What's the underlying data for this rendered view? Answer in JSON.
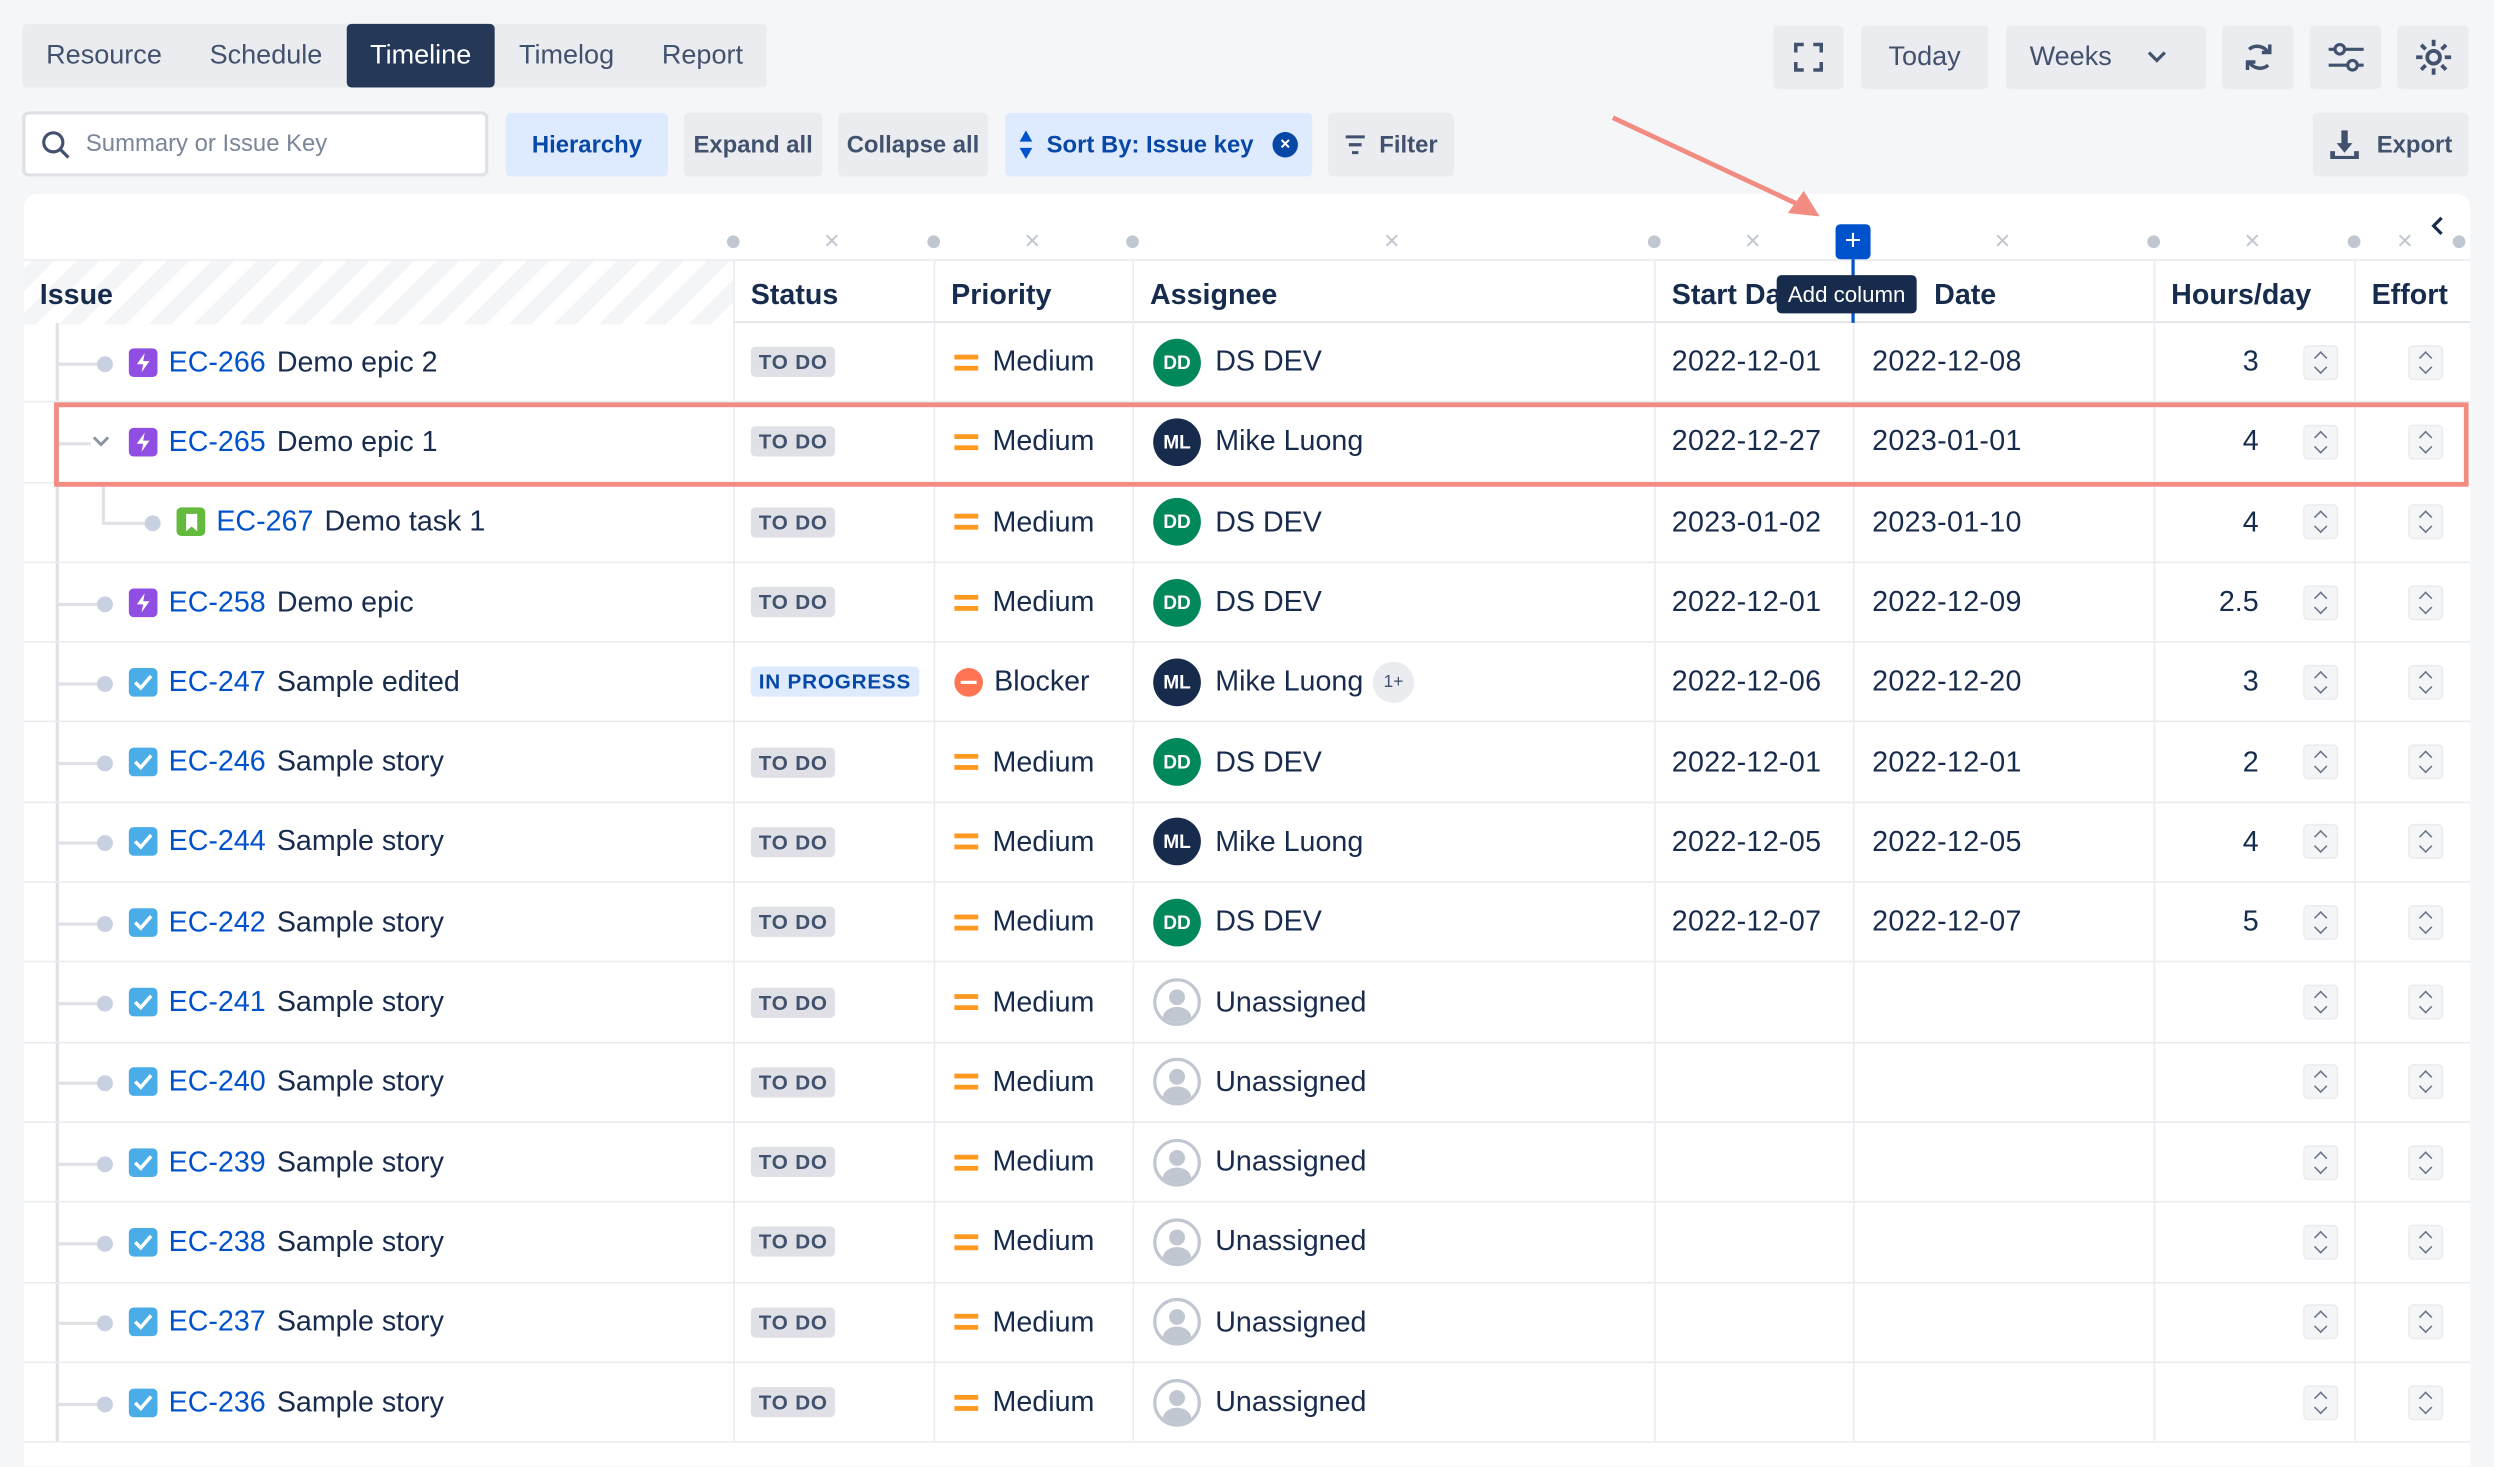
{
  "tabs": [
    "Resource",
    "Schedule",
    "Timeline",
    "Timelog",
    "Report"
  ],
  "active_tab": "Timeline",
  "toolbar": {
    "today": "Today",
    "weeks": "Weeks"
  },
  "search": {
    "placeholder": "Summary or Issue Key"
  },
  "buttons": {
    "hierarchy": "Hierarchy",
    "expand_all": "Expand all",
    "collapse_all": "Collapse all",
    "sort_by": "Sort By: Issue key",
    "filter": "Filter",
    "export": "Export"
  },
  "tooltip": "Add column",
  "columns": [
    "Issue",
    "Status",
    "Priority",
    "Assignee",
    "Start Da",
    "Date",
    "Hours/day",
    "Effort"
  ],
  "rows": [
    {
      "key": "EC-266",
      "summary": "Demo epic 2",
      "type": "epic",
      "level": 0,
      "status": "TO DO",
      "priority": "Medium",
      "assignee": "DS DEV",
      "initials": "DD",
      "start": "2022-12-01",
      "due": "2022-12-08",
      "hours": "3"
    },
    {
      "key": "EC-265",
      "summary": "Demo epic 1",
      "type": "epic",
      "level": 0,
      "expanded": true,
      "status": "TO DO",
      "priority": "Medium",
      "assignee": "Mike Luong",
      "initials": "ML",
      "start": "2022-12-27",
      "due": "2023-01-01",
      "hours": "4"
    },
    {
      "key": "EC-267",
      "summary": "Demo task 1",
      "type": "task",
      "level": 1,
      "status": "TO DO",
      "priority": "Medium",
      "assignee": "DS DEV",
      "initials": "DD",
      "start": "2023-01-02",
      "due": "2023-01-10",
      "hours": "4"
    },
    {
      "key": "EC-258",
      "summary": "Demo epic",
      "type": "epic",
      "level": 0,
      "status": "TO DO",
      "priority": "Medium",
      "assignee": "DS DEV",
      "initials": "DD",
      "start": "2022-12-01",
      "due": "2022-12-09",
      "hours": "2.5"
    },
    {
      "key": "EC-247",
      "summary": "Sample edited",
      "type": "story",
      "level": 0,
      "status": "IN PROGRESS",
      "priority": "Blocker",
      "assignee": "Mike Luong",
      "initials": "ML",
      "extra": "1+",
      "start": "2022-12-06",
      "due": "2022-12-20",
      "hours": "3"
    },
    {
      "key": "EC-246",
      "summary": "Sample story",
      "type": "story",
      "level": 0,
      "status": "TO DO",
      "priority": "Medium",
      "assignee": "DS DEV",
      "initials": "DD",
      "start": "2022-12-01",
      "due": "2022-12-01",
      "hours": "2"
    },
    {
      "key": "EC-244",
      "summary": "Sample story",
      "type": "story",
      "level": 0,
      "status": "TO DO",
      "priority": "Medium",
      "assignee": "Mike Luong",
      "initials": "ML",
      "start": "2022-12-05",
      "due": "2022-12-05",
      "hours": "4"
    },
    {
      "key": "EC-242",
      "summary": "Sample story",
      "type": "story",
      "level": 0,
      "status": "TO DO",
      "priority": "Medium",
      "assignee": "DS DEV",
      "initials": "DD",
      "start": "2022-12-07",
      "due": "2022-12-07",
      "hours": "5"
    },
    {
      "key": "EC-241",
      "summary": "Sample story",
      "type": "story",
      "level": 0,
      "status": "TO DO",
      "priority": "Medium",
      "assignee": "Unassigned",
      "initials": "",
      "start": "",
      "due": "",
      "hours": ""
    },
    {
      "key": "EC-240",
      "summary": "Sample story",
      "type": "story",
      "level": 0,
      "status": "TO DO",
      "priority": "Medium",
      "assignee": "Unassigned",
      "initials": "",
      "start": "",
      "due": "",
      "hours": ""
    },
    {
      "key": "EC-239",
      "summary": "Sample story",
      "type": "story",
      "level": 0,
      "status": "TO DO",
      "priority": "Medium",
      "assignee": "Unassigned",
      "initials": "",
      "start": "",
      "due": "",
      "hours": ""
    },
    {
      "key": "EC-238",
      "summary": "Sample story",
      "type": "story",
      "level": 0,
      "status": "TO DO",
      "priority": "Medium",
      "assignee": "Unassigned",
      "initials": "",
      "start": "",
      "due": "",
      "hours": ""
    },
    {
      "key": "EC-237",
      "summary": "Sample story",
      "type": "story",
      "level": 0,
      "status": "TO DO",
      "priority": "Medium",
      "assignee": "Unassigned",
      "initials": "",
      "start": "",
      "due": "",
      "hours": ""
    },
    {
      "key": "EC-236",
      "summary": "Sample story",
      "type": "story",
      "level": 0,
      "status": "TO DO",
      "priority": "Medium",
      "assignee": "Unassigned",
      "initials": "",
      "start": "",
      "due": "",
      "hours": ""
    }
  ]
}
